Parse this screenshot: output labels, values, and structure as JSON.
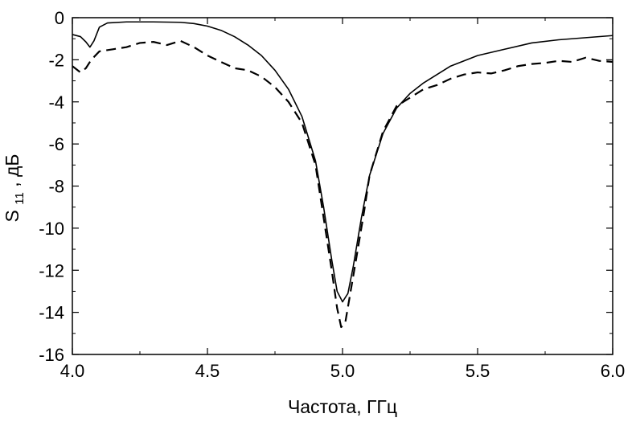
{
  "chart_data": {
    "type": "line",
    "title": "",
    "xlabel": "Частота, ГГц",
    "ylabel": {
      "main": "S",
      "subscript": "11",
      "suffix": ", дБ"
    },
    "xlim": [
      4.0,
      6.0
    ],
    "ylim": [
      -16,
      0
    ],
    "x_ticks": [
      4.0,
      4.5,
      5.0,
      5.5,
      6.0
    ],
    "x_tick_labels": [
      "4.0",
      "4.5",
      "5.0",
      "5.5",
      "6.0"
    ],
    "y_ticks": [
      0,
      -2,
      -4,
      -6,
      -8,
      -10,
      -12,
      -14,
      -16
    ],
    "y_tick_labels": [
      "0",
      "-2",
      "-4",
      "-6",
      "-8",
      "-10",
      "-12",
      "-14",
      "-16"
    ],
    "grid": false,
    "legend": "none",
    "series": [
      {
        "style": "solid",
        "color": "#000000",
        "points": [
          [
            4.0,
            -0.8
          ],
          [
            4.03,
            -0.9
          ],
          [
            4.05,
            -1.15
          ],
          [
            4.065,
            -1.4
          ],
          [
            4.08,
            -1.1
          ],
          [
            4.1,
            -0.45
          ],
          [
            4.13,
            -0.25
          ],
          [
            4.2,
            -0.2
          ],
          [
            4.3,
            -0.2
          ],
          [
            4.4,
            -0.22
          ],
          [
            4.45,
            -0.28
          ],
          [
            4.5,
            -0.4
          ],
          [
            4.55,
            -0.6
          ],
          [
            4.6,
            -0.9
          ],
          [
            4.65,
            -1.3
          ],
          [
            4.7,
            -1.8
          ],
          [
            4.75,
            -2.5
          ],
          [
            4.8,
            -3.4
          ],
          [
            4.85,
            -4.7
          ],
          [
            4.9,
            -6.8
          ],
          [
            4.93,
            -9.0
          ],
          [
            4.96,
            -11.5
          ],
          [
            4.98,
            -13.0
          ],
          [
            5.0,
            -13.5
          ],
          [
            5.02,
            -13.1
          ],
          [
            5.04,
            -11.8
          ],
          [
            5.07,
            -9.5
          ],
          [
            5.1,
            -7.5
          ],
          [
            5.15,
            -5.5
          ],
          [
            5.2,
            -4.3
          ],
          [
            5.25,
            -3.6
          ],
          [
            5.3,
            -3.1
          ],
          [
            5.35,
            -2.7
          ],
          [
            5.4,
            -2.3
          ],
          [
            5.5,
            -1.8
          ],
          [
            5.6,
            -1.5
          ],
          [
            5.7,
            -1.2
          ],
          [
            5.8,
            -1.05
          ],
          [
            5.9,
            -0.95
          ],
          [
            6.0,
            -0.85
          ]
        ]
      },
      {
        "style": "dashed",
        "color": "#000000",
        "points": [
          [
            4.0,
            -2.3
          ],
          [
            4.03,
            -2.6
          ],
          [
            4.05,
            -2.4
          ],
          [
            4.07,
            -2.0
          ],
          [
            4.1,
            -1.6
          ],
          [
            4.15,
            -1.5
          ],
          [
            4.2,
            -1.4
          ],
          [
            4.25,
            -1.2
          ],
          [
            4.3,
            -1.15
          ],
          [
            4.35,
            -1.3
          ],
          [
            4.4,
            -1.1
          ],
          [
            4.45,
            -1.4
          ],
          [
            4.5,
            -1.8
          ],
          [
            4.55,
            -2.1
          ],
          [
            4.6,
            -2.4
          ],
          [
            4.65,
            -2.5
          ],
          [
            4.7,
            -2.8
          ],
          [
            4.75,
            -3.3
          ],
          [
            4.8,
            -4.0
          ],
          [
            4.85,
            -5.0
          ],
          [
            4.9,
            -7.0
          ],
          [
            4.93,
            -9.5
          ],
          [
            4.96,
            -12.0
          ],
          [
            4.98,
            -13.8
          ],
          [
            4.995,
            -14.7
          ],
          [
            5.01,
            -14.5
          ],
          [
            5.03,
            -13.0
          ],
          [
            5.05,
            -11.5
          ],
          [
            5.08,
            -9.2
          ],
          [
            5.1,
            -7.5
          ],
          [
            5.15,
            -5.4
          ],
          [
            5.2,
            -4.2
          ],
          [
            5.25,
            -3.8
          ],
          [
            5.3,
            -3.4
          ],
          [
            5.35,
            -3.2
          ],
          [
            5.4,
            -2.9
          ],
          [
            5.45,
            -2.7
          ],
          [
            5.5,
            -2.6
          ],
          [
            5.55,
            -2.65
          ],
          [
            5.6,
            -2.5
          ],
          [
            5.65,
            -2.3
          ],
          [
            5.7,
            -2.2
          ],
          [
            5.75,
            -2.15
          ],
          [
            5.8,
            -2.05
          ],
          [
            5.85,
            -2.1
          ],
          [
            5.9,
            -1.9
          ],
          [
            5.95,
            -2.05
          ],
          [
            6.0,
            -2.1
          ]
        ]
      }
    ]
  }
}
